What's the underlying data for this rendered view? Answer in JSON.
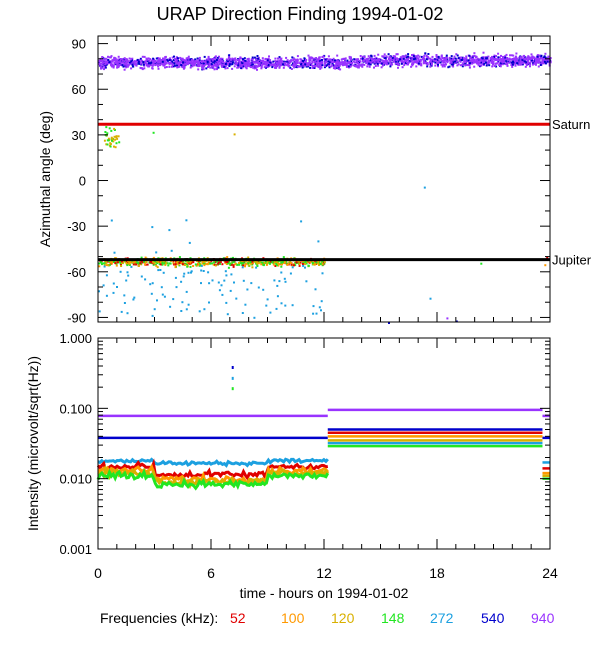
{
  "title": "URAP Direction Finding  1994-01-02",
  "colors": {
    "52": "#e00000",
    "100": "#ff9900",
    "120": "#d9b000",
    "148": "#22e622",
    "272": "#1ca0e0",
    "540": "#0000cc",
    "940": "#9933ff",
    "saturn": "#e00000",
    "jupiter": "#000000"
  },
  "freq_legend": {
    "label": "Frequencies (kHz):",
    "items": [
      {
        "text": "52",
        "color": "#e00000"
      },
      {
        "text": "100",
        "color": "#ff9900"
      },
      {
        "text": "120",
        "color": "#d9b000"
      },
      {
        "text": "148",
        "color": "#22e622"
      },
      {
        "text": "272",
        "color": "#1ca0e0"
      },
      {
        "text": "540",
        "color": "#0000cc"
      },
      {
        "text": "940",
        "color": "#9933ff"
      }
    ]
  },
  "chart_data": [
    {
      "type": "scatter",
      "title": "URAP Direction Finding  1994-01-02",
      "xlabel": "time - hours on 1994-01-02",
      "ylabel": "Azimuthal angle (deg)",
      "xlim": [
        0,
        24
      ],
      "ylim": [
        -93,
        95
      ],
      "yticks": [
        "90",
        "60",
        "30",
        "0",
        "-30",
        "-60",
        "-90"
      ],
      "xticks": [
        "0",
        "6",
        "12",
        "18",
        "24"
      ],
      "reference_lines": [
        {
          "name": "Saturn",
          "y": 37
        },
        {
          "name": "Jupiter",
          "y": -52
        }
      ],
      "series": [
        {
          "name": "940 kHz",
          "x_range": [
            0,
            24
          ],
          "y_mean": 78,
          "y_spread": 7
        },
        {
          "name": "540 kHz",
          "x_range": [
            0,
            24
          ],
          "y_mean": 78,
          "y_spread": 4
        },
        {
          "name": "52-148 kHz",
          "x_range": [
            0,
            12
          ],
          "y_mean": -53,
          "y_spread": 6
        },
        {
          "name": "272 kHz",
          "x_range": [
            0,
            12
          ],
          "y_mean": -55,
          "y_spread": 20
        }
      ]
    },
    {
      "type": "line",
      "xlabel": "time - hours on 1994-01-02",
      "ylabel": "Intensity (microvolt/sqrt(Hz))",
      "xlim": [
        0,
        24
      ],
      "ylim": [
        0.001,
        1.0
      ],
      "yscale": "log",
      "yticks": [
        "1.000",
        "0.100",
        "0.010",
        "0.001"
      ],
      "xticks": [
        "0",
        "6",
        "12",
        "18",
        "24"
      ],
      "series": [
        {
          "name": "940",
          "segments": [
            [
              0,
              12.2,
              0.078
            ],
            [
              12.2,
              23.6,
              0.095
            ],
            [
              23.6,
              24,
              0.078
            ]
          ]
        },
        {
          "name": "540",
          "segments": [
            [
              0,
              12.2,
              0.038
            ],
            [
              12.2,
              23.6,
              0.05
            ],
            [
              23.6,
              24,
              0.038
            ]
          ]
        },
        {
          "name": "272",
          "segments": [
            [
              0,
              12.2,
              0.018
            ],
            [
              12.2,
              23.6,
              0.032
            ],
            [
              23.6,
              24,
              0.017
            ]
          ]
        },
        {
          "name": "52",
          "segments": [
            [
              0,
              12.2,
              0.015
            ],
            [
              12.2,
              23.6,
              0.045
            ],
            [
              23.6,
              24,
              0.014
            ]
          ]
        },
        {
          "name": "100",
          "segments": [
            [
              0,
              12.2,
              0.013
            ],
            [
              12.2,
              23.6,
              0.04
            ],
            [
              23.6,
              24,
              0.012
            ]
          ]
        },
        {
          "name": "120",
          "segments": [
            [
              0,
              12.2,
              0.012
            ],
            [
              12.2,
              23.6,
              0.035
            ],
            [
              23.6,
              24,
              0.011
            ]
          ]
        },
        {
          "name": "148",
          "segments": [
            [
              0,
              12.2,
              0.011
            ],
            [
              12.2,
              23.6,
              0.029
            ],
            [
              23.6,
              24,
              0.01
            ]
          ]
        }
      ]
    }
  ]
}
